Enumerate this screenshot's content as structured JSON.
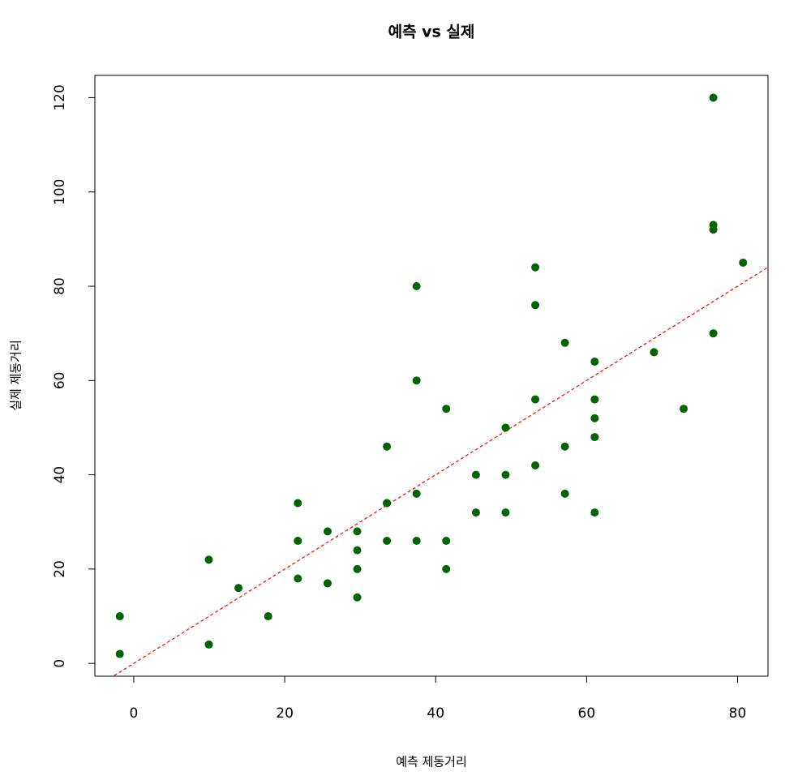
{
  "chart_data": {
    "type": "scatter",
    "title": "예측 vs 실제",
    "xlabel": "예측 제동거리",
    "ylabel": "실제 제동거리",
    "x": [
      -1.85,
      -1.85,
      9.95,
      9.95,
      13.88,
      17.81,
      21.74,
      21.74,
      21.74,
      25.68,
      25.68,
      29.61,
      29.61,
      29.61,
      29.61,
      33.54,
      33.54,
      33.54,
      33.54,
      37.47,
      37.47,
      37.47,
      37.47,
      41.4,
      41.4,
      41.4,
      45.34,
      45.34,
      49.27,
      49.27,
      49.27,
      53.2,
      53.2,
      53.2,
      53.2,
      57.13,
      57.13,
      57.13,
      61.07,
      61.07,
      61.07,
      61.07,
      61.07,
      68.93,
      72.86,
      76.79,
      76.79,
      76.79,
      76.79,
      80.73
    ],
    "series": [
      {
        "color": "#006400",
        "values": [
          2,
          10,
          4,
          22,
          16,
          10,
          18,
          26,
          34,
          17,
          28,
          14,
          20,
          24,
          28,
          26,
          34,
          34,
          46,
          26,
          36,
          60,
          80,
          20,
          26,
          54,
          32,
          40,
          32,
          40,
          50,
          42,
          56,
          76,
          84,
          36,
          46,
          68,
          32,
          48,
          52,
          56,
          64,
          66,
          54,
          70,
          92,
          93,
          120,
          85
        ]
      }
    ],
    "reference_line": {
      "slope": 1,
      "intercept": 0,
      "color": "#ff0000",
      "dashed": true
    },
    "xlim": [
      -5.15,
      84.03
    ],
    "ylim": [
      -2.72,
      124.72
    ],
    "xticks": [
      0,
      20,
      40,
      60,
      80
    ],
    "yticks": [
      0,
      20,
      40,
      60,
      80,
      100,
      120
    ],
    "grid": false
  }
}
